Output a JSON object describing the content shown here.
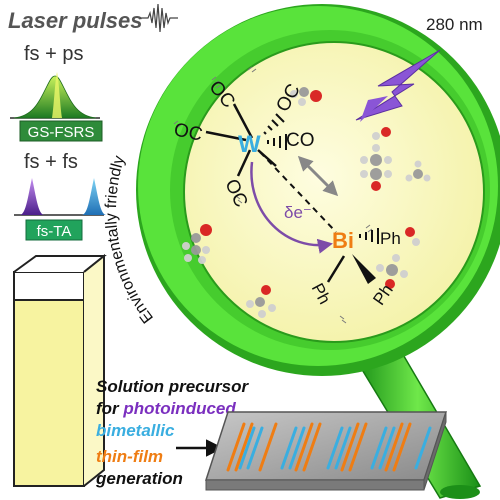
{
  "laser": {
    "title": "Laser pulses",
    "combo1": "fs + ps",
    "method1": "GS-FSRS",
    "combo2": "fs + fs",
    "method2": "fs-TA"
  },
  "uv": {
    "wavelength": "280 nm"
  },
  "lens": {
    "ring_text": "Environmentally friendly"
  },
  "molecule": {
    "metal_w": "W",
    "metal_bi": "Bi",
    "co": "CO",
    "oc": "OC",
    "ph": "Ph",
    "electron": "δe⁻"
  },
  "caption": {
    "line1": "Solution precursor",
    "line2_prefix": "for ",
    "line2_highlight": "photoinduced",
    "line3": "bimetallic",
    "line4": "thin-film",
    "line5": "generation"
  },
  "colors": {
    "lens_green": "#3fd12a",
    "lens_fill": "#fdfcc4",
    "w_blue": "#3aaee0",
    "bi_orange": "#ef7d13",
    "arrow_purple": "#7d4ca8",
    "uv_purple": "#8a55d6",
    "fsrs_box": "#2e8b3a",
    "fsta_box": "#21a35c",
    "cuvette_fill": "#f7f3a0",
    "highlight_purple": "#7b2fbf",
    "bimetallic_blue": "#3aaee0",
    "thinfilm_orange": "#ef7d13"
  }
}
